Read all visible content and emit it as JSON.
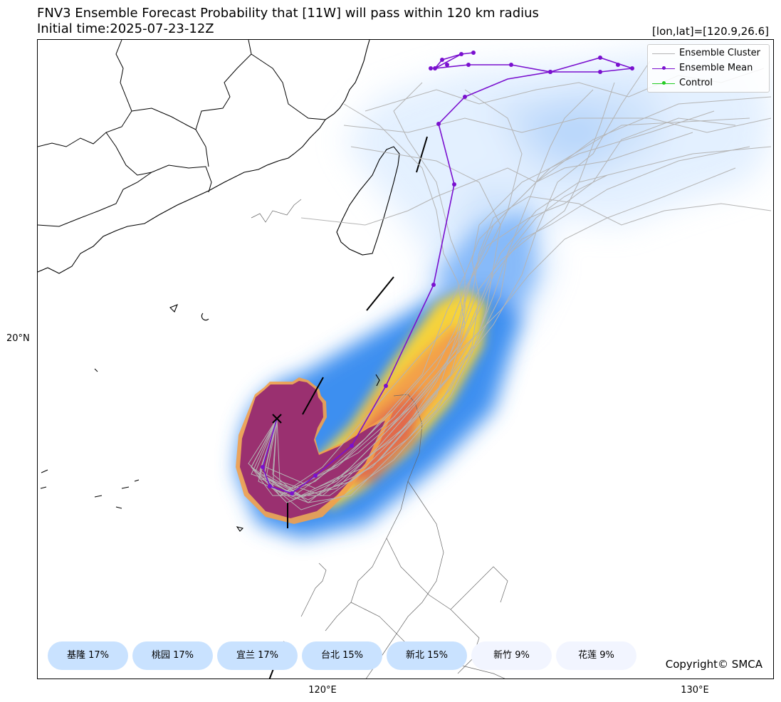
{
  "header": {
    "title": "FNV3 Ensemble Forecast Probability that [11W] will pass within 120 km radius",
    "subtitle": "Initial time:2025-07-23-12Z",
    "coord": "[lon,lat]=[120.9,26.6]"
  },
  "axes": {
    "y_labels": [
      "20°N"
    ],
    "x_labels": [
      "120°E",
      "130°E"
    ]
  },
  "legend": {
    "items": [
      {
        "label": "Ensemble Cluster",
        "color": "#b4b4b4",
        "marker": "none"
      },
      {
        "label": "Ensemble Mean",
        "color": "#7a10cf",
        "marker": "dot"
      },
      {
        "label": "Control",
        "color": "#22cc22",
        "marker": "dot"
      }
    ]
  },
  "cities": [
    {
      "label": "基隆 17%",
      "color": "#c9e2ff"
    },
    {
      "label": "桃园 17%",
      "color": "#c9e2ff"
    },
    {
      "label": "宜兰 17%",
      "color": "#c9e2ff"
    },
    {
      "label": "台北 15%",
      "color": "#c9e2ff"
    },
    {
      "label": "新北 15%",
      "color": "#c9e2ff"
    },
    {
      "label": "新竹 9%",
      "color": "#f2f5ff"
    },
    {
      "label": "花莲 9%",
      "color": "#f2f5ff"
    }
  ],
  "footer": {
    "copyright": "Copyright© SMCA"
  },
  "colors": {
    "mean_track": "#7a10cf",
    "cluster": "#b4b4b4",
    "control": "#22cc22",
    "prob_high": "#9a3070",
    "prob_mid": "#f6d33a",
    "prob_low": "#3d8ff0",
    "prob_faint": "#cde4ff"
  }
}
